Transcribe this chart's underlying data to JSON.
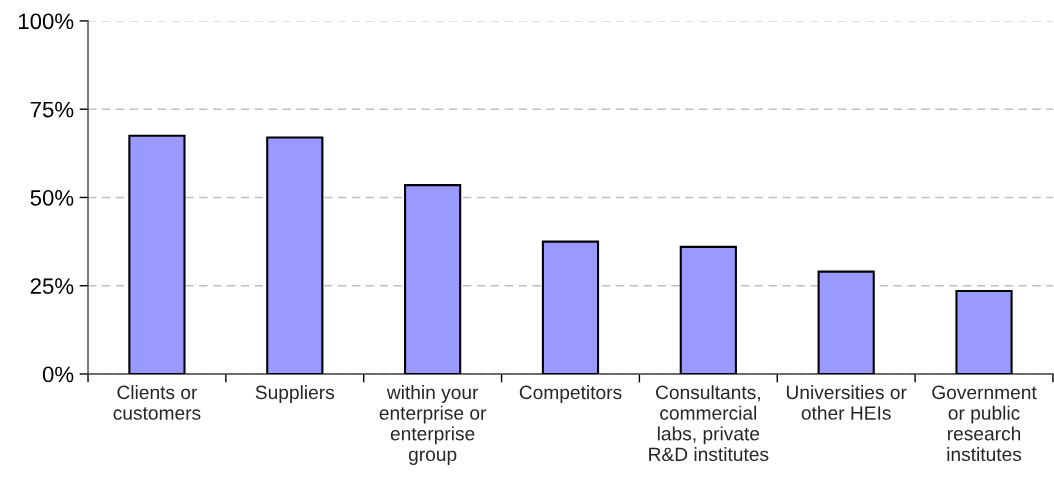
{
  "chart_data": {
    "type": "bar",
    "categories": [
      "Clients or\ncustomers",
      "Suppliers",
      "within your\nenterprise or\nenterprise\ngroup",
      "Competitors",
      "Consultants,\ncommercial\nlabs, private\nR&D institutes",
      "Universities or\nother HEIs",
      "Government\nor public\nresearch\ninstitutes"
    ],
    "values": [
      67.5,
      67,
      53.5,
      37.5,
      36,
      29,
      23.5
    ],
    "color": "#9999ff",
    "ylim": [
      0,
      100
    ],
    "yticks": [
      {
        "value": 0,
        "label": "0%"
      },
      {
        "value": 25,
        "label": "25%"
      },
      {
        "value": 50,
        "label": "50%"
      },
      {
        "value": 75,
        "label": "75%"
      },
      {
        "value": 100,
        "label": "100%"
      }
    ],
    "grid": "y"
  }
}
